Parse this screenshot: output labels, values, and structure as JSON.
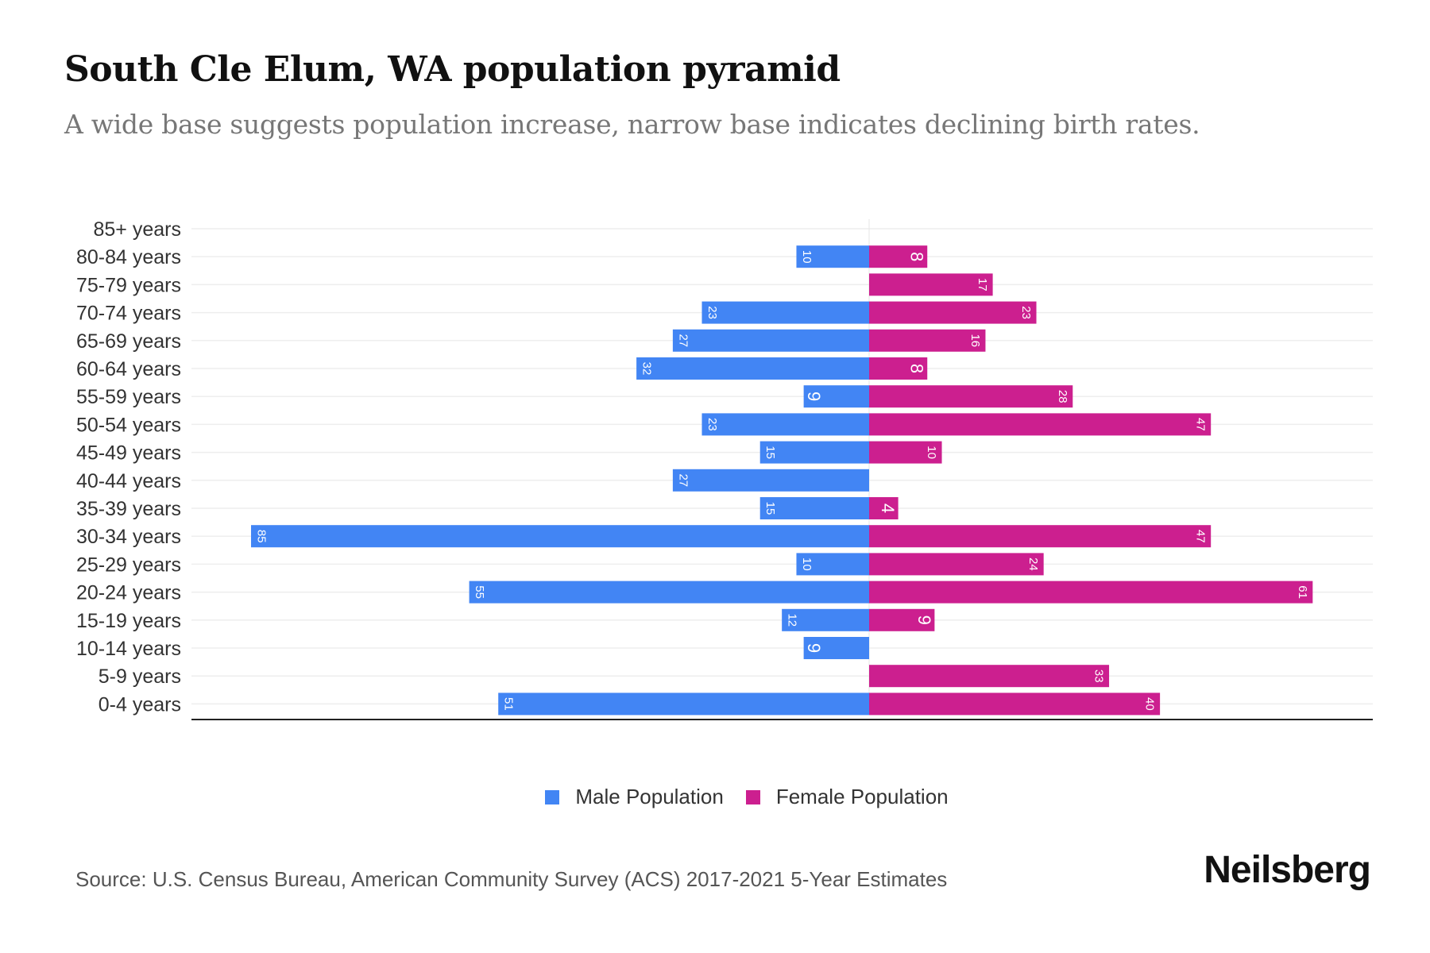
{
  "header": {
    "title": "South Cle Elum, WA population pyramid",
    "subtitle": "A wide base suggests population increase, narrow base indicates declining birth rates."
  },
  "chart_data": {
    "type": "bar",
    "orientation": "horizontal-pyramid",
    "categories": [
      "85+ years",
      "80-84 years",
      "75-79 years",
      "70-74 years",
      "65-69 years",
      "60-64 years",
      "55-59 years",
      "50-54 years",
      "45-49 years",
      "40-44 years",
      "35-39 years",
      "30-34 years",
      "25-29 years",
      "20-24 years",
      "15-19 years",
      "10-14 years",
      "5-9 years",
      "0-4 years"
    ],
    "series": [
      {
        "name": "Male Population",
        "color": "#4285f4",
        "values": [
          0,
          10,
          0,
          23,
          27,
          32,
          9,
          23,
          15,
          27,
          15,
          85,
          10,
          55,
          12,
          9,
          0,
          51
        ]
      },
      {
        "name": "Female Population",
        "color": "#cc1f8f",
        "values": [
          0,
          8,
          17,
          23,
          16,
          8,
          28,
          47,
          10,
          0,
          4,
          47,
          24,
          61,
          9,
          0,
          33,
          40
        ]
      }
    ],
    "xlim": [
      -85,
      85
    ],
    "grid": true,
    "legend_position": "bottom"
  },
  "legend": {
    "male_label": "Male Population",
    "female_label": "Female Population"
  },
  "footer": {
    "source": "Source: U.S. Census Bureau, American Community Survey (ACS) 2017-2021 5-Year Estimates",
    "logo": "Neilsberg"
  }
}
